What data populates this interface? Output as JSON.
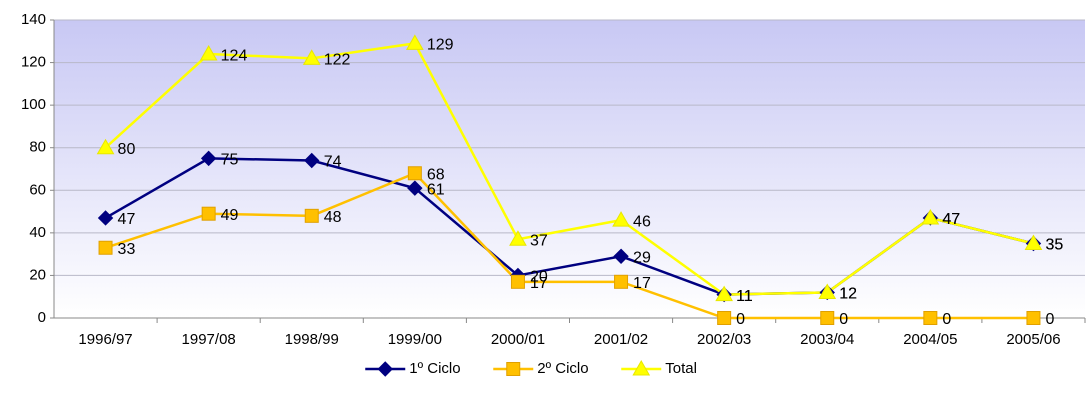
{
  "chart_data": {
    "type": "line",
    "categories": [
      "1996/97",
      "1997/08",
      "1998/99",
      "1999/00",
      "2000/01",
      "2001/02",
      "2002/03",
      "2003/04",
      "2004/05",
      "2005/06"
    ],
    "series": [
      {
        "name": "1º Ciclo",
        "color": "#000080",
        "marker": "diamond",
        "values": [
          47,
          75,
          74,
          61,
          20,
          29,
          11,
          12,
          47,
          35
        ]
      },
      {
        "name": "2º Ciclo",
        "color": "#FFC000",
        "marker": "square",
        "values": [
          33,
          49,
          48,
          68,
          17,
          17,
          0,
          0,
          0,
          0
        ]
      },
      {
        "name": "Total",
        "color": "#FFFF00",
        "marker": "triangle",
        "values": [
          80,
          124,
          122,
          129,
          37,
          46,
          11,
          12,
          47,
          35
        ]
      }
    ],
    "ylim": [
      0,
      140
    ],
    "yticks": [
      0,
      20,
      40,
      60,
      80,
      100,
      120,
      140
    ],
    "grid": true,
    "legend": "bottom"
  }
}
